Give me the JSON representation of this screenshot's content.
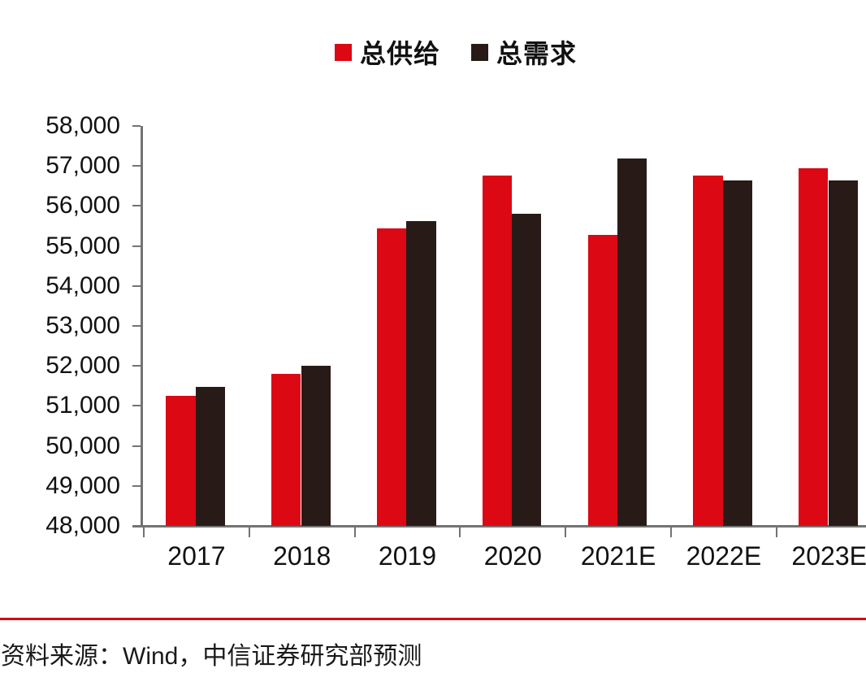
{
  "legend": {
    "items": [
      {
        "label": "总供给",
        "color": "#dc0814"
      },
      {
        "label": "总需求",
        "color": "#281b17"
      }
    ]
  },
  "chart_data": {
    "type": "bar",
    "title": "",
    "xlabel": "",
    "ylabel": "",
    "categories": [
      "2017",
      "2018",
      "2019",
      "2020",
      "2021E",
      "2022E",
      "2023E"
    ],
    "series": [
      {
        "name": "总供给",
        "color": "#dc0814",
        "values": [
          51250,
          51800,
          55440,
          56760,
          55280,
          56760,
          56950
        ]
      },
      {
        "name": "总需求",
        "color": "#281b17",
        "values": [
          51480,
          52000,
          55620,
          55800,
          57190,
          56630,
          56640
        ]
      }
    ],
    "ylim": [
      48000,
      58000
    ],
    "ytick_step": 1000,
    "ytick_labels": [
      "58,000",
      "57,000",
      "56,000",
      "55,000",
      "54,000",
      "53,000",
      "52,000",
      "51,000",
      "50,000",
      "49,000",
      "48,000"
    ],
    "grid": false,
    "legend_position": "top-center",
    "clipped_right": true
  },
  "footer": {
    "source_text": "资料来源：Wind，中信证券研究部预测",
    "rule_color": "#d7000f"
  },
  "colors": {
    "supply": "#dc0814",
    "demand": "#281b17",
    "axis": "#737373",
    "text": "#111111",
    "background": "#ffffff"
  }
}
